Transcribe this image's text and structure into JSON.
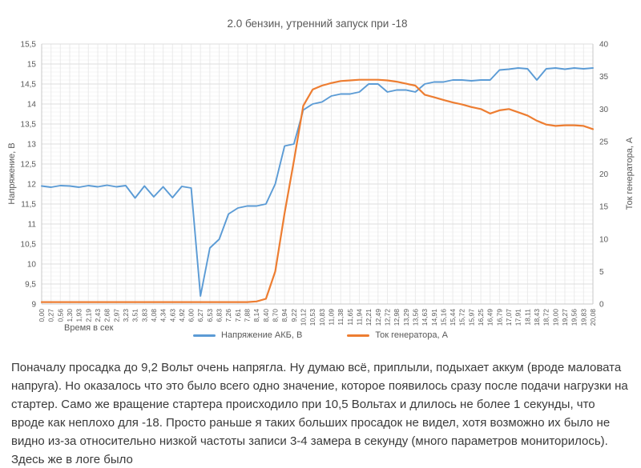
{
  "article": {
    "paragraph": "Поначалу просадка до 9,2 Вольт очень напрягла. Ну думаю всё, приплыли, подыхает аккум (вроде маловата напруга). Но оказалось что это было всего одно значение, которое появилось сразу после подачи нагрузки на стартер. Само же вращение стартера происходило при 10,5 Вольтах и длилось не более 1 секунды, что вроде как неплохо для -18. Просто раньше я таких больших просадок не видел, хотя возможно их было не видно из-за относительно низкой частоты записи 3-4 замера в секунду (много параметров мониторилось). Здесь же в логе было"
  },
  "chart_data": {
    "type": "line",
    "title": "2.0 бензин, утренний запуск при -18",
    "xlabel": "Время в сек",
    "ylabel_left": "Напряжение, В",
    "ylabel_right": "Ток генератора, А",
    "grid": true,
    "legend_position": "bottom",
    "axes": {
      "left": {
        "min": 9,
        "max": 15.5,
        "step": 0.5
      },
      "right": {
        "min": 0,
        "max": 40,
        "step": 5
      }
    },
    "categories": [
      "0,00",
      "0,27",
      "0,56",
      "1,30",
      "1,93",
      "2,19",
      "2,43",
      "2,68",
      "2,97",
      "3,23",
      "3,51",
      "3,83",
      "4,08",
      "4,34",
      "4,63",
      "4,92",
      "6,00",
      "6,27",
      "6,53",
      "6,83",
      "7,26",
      "7,61",
      "7,88",
      "8,14",
      "8,40",
      "8,70",
      "8,94",
      "9,22",
      "10,12",
      "10,53",
      "10,83",
      "11,09",
      "11,38",
      "11,65",
      "11,94",
      "12,21",
      "12,49",
      "12,72",
      "12,98",
      "13,29",
      "13,56",
      "14,63",
      "14,91",
      "15,16",
      "15,44",
      "15,72",
      "15,97",
      "16,25",
      "16,49",
      "16,79",
      "17,07",
      "17,91",
      "18,11",
      "18,43",
      "18,72",
      "19,00",
      "19,27",
      "19,56",
      "19,83",
      "20,08"
    ],
    "series": [
      {
        "name": "Напряжение АКБ, В",
        "axis": "left",
        "color": "#5B9BD5",
        "values": [
          11.95,
          11.92,
          11.96,
          11.95,
          11.92,
          11.96,
          11.93,
          11.97,
          11.93,
          11.96,
          11.65,
          11.95,
          11.68,
          11.93,
          11.66,
          11.94,
          11.9,
          9.2,
          10.4,
          10.62,
          11.25,
          11.4,
          11.45,
          11.45,
          11.5,
          12.0,
          12.95,
          13.0,
          13.85,
          14.0,
          14.05,
          14.2,
          14.25,
          14.25,
          14.3,
          14.5,
          14.5,
          14.3,
          14.35,
          14.35,
          14.3,
          14.5,
          14.55,
          14.55,
          14.6,
          14.6,
          14.58,
          14.6,
          14.6,
          14.85,
          14.87,
          14.9,
          14.88,
          14.6,
          14.88,
          14.9,
          14.87,
          14.9,
          14.88,
          14.9
        ]
      },
      {
        "name": "Ток генератора, А",
        "axis": "right",
        "color": "#ED7D31",
        "values": [
          0.3,
          0.3,
          0.3,
          0.3,
          0.3,
          0.3,
          0.3,
          0.3,
          0.3,
          0.3,
          0.3,
          0.3,
          0.3,
          0.3,
          0.3,
          0.3,
          0.3,
          0.3,
          0.3,
          0.3,
          0.3,
          0.3,
          0.3,
          0.4,
          0.8,
          5.0,
          14.0,
          22.0,
          30.5,
          33.0,
          33.6,
          34.0,
          34.3,
          34.4,
          34.5,
          34.5,
          34.5,
          34.4,
          34.2,
          33.9,
          33.6,
          32.2,
          31.8,
          31.4,
          31.0,
          30.7,
          30.3,
          30.0,
          29.3,
          29.8,
          30.0,
          29.5,
          29.0,
          28.2,
          27.6,
          27.4,
          27.5,
          27.5,
          27.4,
          26.9
        ]
      }
    ]
  }
}
